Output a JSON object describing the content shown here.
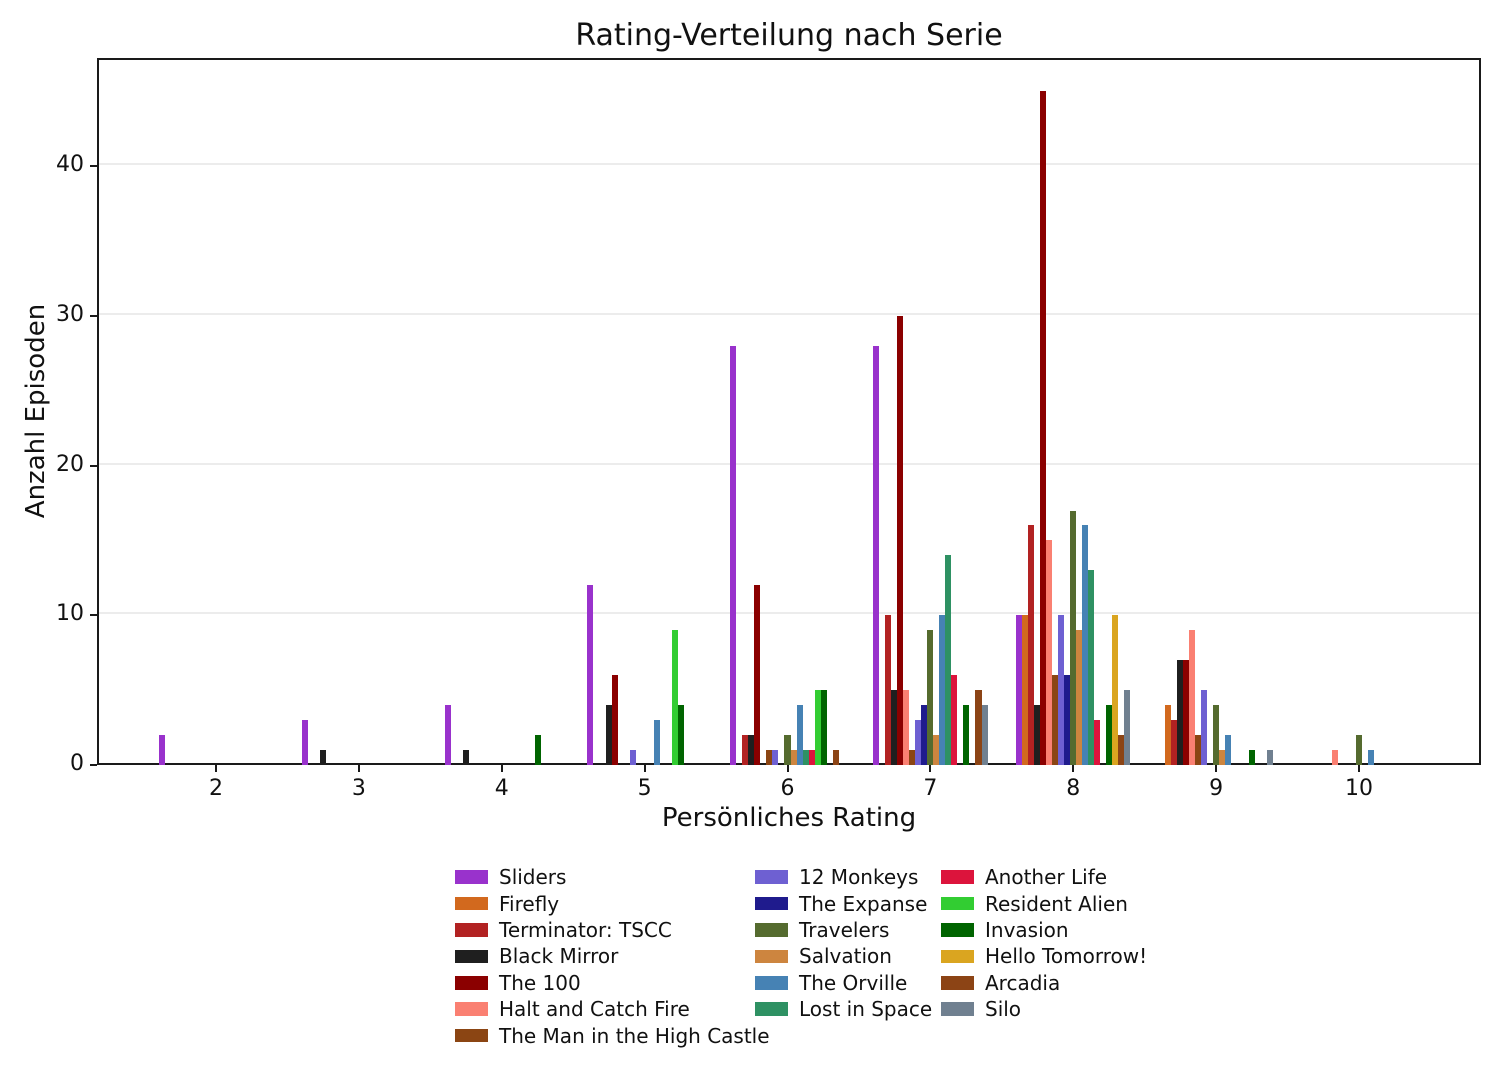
{
  "title": "Rating-Verteilung nach Serie",
  "chart_data": {
    "type": "bar",
    "title": "Rating-Verteilung nach Serie",
    "xlabel": "Persönliches Rating",
    "ylabel": "Anzahl Episoden",
    "categories": [
      2,
      3,
      4,
      5,
      6,
      7,
      8,
      9,
      10
    ],
    "xticks": [
      "2",
      "3",
      "4",
      "5",
      "6",
      "7",
      "8",
      "9",
      "10"
    ],
    "yticks": [
      0,
      10,
      20,
      30,
      40
    ],
    "ylim": [
      0,
      47.3
    ],
    "grid": "horizontal-only",
    "legend_position": "below-chart, 3 columns",
    "legend_column_sizes": [
      7,
      6,
      6
    ],
    "series": [
      {
        "name": "Sliders",
        "color": "#9932CC",
        "values": [
          2,
          3,
          4,
          12,
          28,
          28,
          10,
          0,
          0
        ]
      },
      {
        "name": "Firefly",
        "color": "#D2691E",
        "values": [
          0,
          0,
          0,
          0,
          0,
          0,
          10,
          4,
          0
        ]
      },
      {
        "name": "Terminator: TSCC",
        "color": "#B22222",
        "values": [
          0,
          0,
          0,
          0,
          2,
          10,
          16,
          3,
          0
        ]
      },
      {
        "name": "Black Mirror",
        "color": "#1F1F1F",
        "values": [
          0,
          1,
          1,
          4,
          2,
          5,
          4,
          7,
          0
        ]
      },
      {
        "name": "The 100",
        "color": "#8B0000",
        "values": [
          0,
          0,
          0,
          6,
          12,
          30,
          45,
          7,
          0
        ]
      },
      {
        "name": "Halt and Catch Fire",
        "color": "#FA8072",
        "values": [
          0,
          0,
          0,
          0,
          0,
          5,
          15,
          9,
          1
        ]
      },
      {
        "name": "The Man in the High Castle",
        "color": "#8B4513",
        "values": [
          0,
          0,
          0,
          0,
          1,
          1,
          6,
          2,
          0
        ]
      },
      {
        "name": "12 Monkeys",
        "color": "#6E60D2",
        "values": [
          0,
          0,
          0,
          1,
          1,
          3,
          10,
          5,
          0
        ]
      },
      {
        "name": "The Expanse",
        "color": "#1F1B8D",
        "values": [
          0,
          0,
          0,
          0,
          0,
          4,
          6,
          0,
          0
        ]
      },
      {
        "name": "Travelers",
        "color": "#556B2F",
        "values": [
          0,
          0,
          0,
          0,
          2,
          9,
          17,
          4,
          2
        ]
      },
      {
        "name": "Salvation",
        "color": "#CD853F",
        "values": [
          0,
          0,
          0,
          0,
          1,
          2,
          9,
          1,
          0
        ]
      },
      {
        "name": "The Orville",
        "color": "#4682B4",
        "values": [
          0,
          0,
          0,
          3,
          4,
          10,
          16,
          2,
          1
        ]
      },
      {
        "name": "Lost in Space",
        "color": "#2E9163",
        "values": [
          0,
          0,
          0,
          0,
          1,
          14,
          13,
          0,
          0
        ]
      },
      {
        "name": "Another Life",
        "color": "#DC143C",
        "values": [
          0,
          0,
          0,
          0,
          1,
          6,
          3,
          0,
          0
        ]
      },
      {
        "name": "Resident Alien",
        "color": "#32CD32",
        "values": [
          0,
          0,
          0,
          9,
          5,
          0,
          0,
          0,
          0
        ]
      },
      {
        "name": "Invasion",
        "color": "#006400",
        "values": [
          0,
          0,
          2,
          4,
          5,
          4,
          4,
          1,
          0
        ]
      },
      {
        "name": "Hello Tomorrow!",
        "color": "#DAA520",
        "values": [
          0,
          0,
          0,
          0,
          0,
          0,
          10,
          0,
          0
        ]
      },
      {
        "name": "Arcadia",
        "color": "#8C4415",
        "values": [
          0,
          0,
          0,
          0,
          1,
          5,
          2,
          0,
          0
        ]
      },
      {
        "name": "Silo",
        "color": "#708090",
        "values": [
          0,
          0,
          0,
          0,
          0,
          4,
          5,
          1,
          0
        ]
      }
    ]
  }
}
